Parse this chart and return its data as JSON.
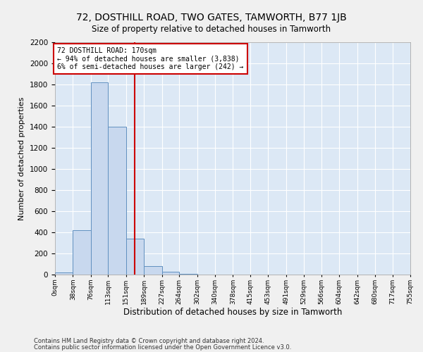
{
  "title": "72, DOSTHILL ROAD, TWO GATES, TAMWORTH, B77 1JB",
  "subtitle": "Size of property relative to detached houses in Tamworth",
  "xlabel": "Distribution of detached houses by size in Tamworth",
  "ylabel": "Number of detached properties",
  "annotation_line1": "72 DOSTHILL ROAD: 170sqm",
  "annotation_line2": "← 94% of detached houses are smaller (3,838)",
  "annotation_line3": "6% of semi-detached houses are larger (242) →",
  "footer_line1": "Contains HM Land Registry data © Crown copyright and database right 2024.",
  "footer_line2": "Contains public sector information licensed under the Open Government Licence v3.0.",
  "property_size": 170,
  "bin_edges": [
    0,
    38,
    76,
    113,
    151,
    189,
    227,
    264,
    302,
    340,
    378,
    415,
    453,
    491,
    529,
    566,
    604,
    642,
    680,
    717,
    755
  ],
  "bar_heights": [
    20,
    420,
    1820,
    1400,
    340,
    80,
    25,
    10,
    0,
    0,
    0,
    0,
    0,
    0,
    0,
    0,
    0,
    0,
    0,
    0
  ],
  "bar_color": "#c8d8ee",
  "bar_edge_color": "#6090c0",
  "vline_color": "#cc0000",
  "vline_x": 170,
  "annotation_box_edge": "#cc0000",
  "bg_color": "#dce8f5",
  "grid_color": "#ffffff",
  "fig_bg_color": "#f0f0f0",
  "ylim": [
    0,
    2200
  ],
  "yticks": [
    0,
    200,
    400,
    600,
    800,
    1000,
    1200,
    1400,
    1600,
    1800,
    2000,
    2200
  ]
}
